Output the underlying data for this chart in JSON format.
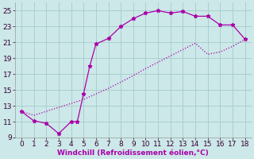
{
  "xlabel": "Windchill (Refroidissement éolien,°C)",
  "xlim": [
    -0.5,
    18.5
  ],
  "ylim": [
    9,
    26
  ],
  "xticks": [
    0,
    1,
    2,
    3,
    4,
    5,
    6,
    7,
    8,
    9,
    10,
    11,
    12,
    13,
    14,
    15,
    16,
    17,
    18
  ],
  "yticks": [
    9,
    11,
    13,
    15,
    17,
    19,
    21,
    23,
    25
  ],
  "background_color": "#cce8e8",
  "grid_color": "#aacfcf",
  "line_color": "#aa00aa",
  "line1_x": [
    0,
    1,
    2,
    3,
    4,
    4.5,
    5,
    5.5,
    6,
    7,
    8,
    9,
    10,
    11,
    12,
    13,
    14,
    15,
    16,
    17,
    18
  ],
  "line1_y": [
    12.3,
    11.1,
    10.8,
    9.5,
    11.0,
    11.0,
    14.5,
    18.0,
    20.8,
    21.5,
    23.0,
    24.0,
    24.7,
    25.0,
    24.7,
    24.9,
    24.3,
    24.3,
    23.2,
    23.2,
    21.4
  ],
  "line2_x": [
    0,
    1,
    2,
    3,
    4,
    5,
    6,
    7,
    8,
    9,
    10,
    11,
    12,
    13,
    14,
    15,
    16,
    17,
    18
  ],
  "line2_y": [
    12.3,
    11.8,
    12.3,
    12.8,
    13.3,
    13.8,
    14.5,
    15.2,
    16.0,
    16.8,
    17.7,
    18.5,
    19.3,
    20.1,
    20.9,
    19.5,
    19.8,
    20.5,
    21.4
  ],
  "xlabel_fontsize": 6.5,
  "tick_fontsize": 6.5
}
